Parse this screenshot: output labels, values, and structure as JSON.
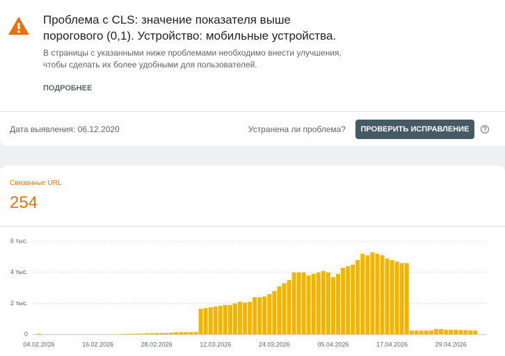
{
  "header": {
    "title_line1": "Проблема с CLS: значение показателя выше",
    "title_line2": "порогового (0,1). Устройство: мобильные устройства.",
    "description_line1": "В страницы с указанными ниже проблемами необходимо внести улучшения,",
    "description_line2": "чтобы сделать их более удобными для пользователей.",
    "more_link": "ПОДРОБНЕЕ",
    "detected": "Дата выявления: 06.12.2020",
    "question": "Устранена ли проблема?",
    "button": "ПРОВЕРИТЬ ИСПРАВЛЕНИЕ"
  },
  "chart_data": {
    "type": "bar",
    "title": "Связанные URL",
    "total": 254,
    "color": "#f4b400",
    "grid": true,
    "categories": [
      "04.02.2026",
      null,
      null,
      null,
      null,
      null,
      null,
      null,
      null,
      null,
      null,
      null,
      "16.02.2026",
      null,
      null,
      null,
      null,
      null,
      null,
      null,
      null,
      null,
      null,
      null,
      "28.02.2026",
      null,
      null,
      null,
      null,
      null,
      null,
      null,
      null,
      null,
      null,
      null,
      "12.03.2026",
      null,
      null,
      null,
      null,
      null,
      null,
      null,
      null,
      null,
      null,
      null,
      "24.03.2026",
      null,
      null,
      null,
      null,
      null,
      null,
      null,
      null,
      null,
      null,
      null,
      "05.04.2026",
      null,
      null,
      null,
      null,
      null,
      null,
      null,
      null,
      null,
      null,
      null,
      "17.04.2026",
      null,
      null,
      null,
      null,
      null,
      null,
      null,
      null,
      null,
      null,
      null,
      "29.04.2026",
      null,
      null,
      null,
      null,
      null
    ],
    "values": [
      50,
      0,
      0,
      0,
      0,
      0,
      0,
      0,
      0,
      0,
      0,
      0,
      0,
      0,
      0,
      0,
      20,
      30,
      40,
      40,
      50,
      60,
      80,
      80,
      90,
      100,
      100,
      110,
      150,
      150,
      160,
      150,
      160,
      1650,
      1700,
      1750,
      1800,
      1850,
      1900,
      1900,
      2000,
      2100,
      2050,
      2100,
      2400,
      2400,
      2450,
      2600,
      2800,
      3100,
      3300,
      3500,
      4000,
      4000,
      4000,
      3800,
      3900,
      4000,
      4100,
      4000,
      3700,
      3900,
      4300,
      4400,
      4500,
      4800,
      5200,
      5100,
      5300,
      5200,
      5100,
      4900,
      4800,
      4700,
      4600,
      4600,
      250,
      250,
      250,
      250,
      250,
      350,
      350,
      300,
      300,
      300,
      280,
      280,
      260,
      250
    ],
    "ylim": [
      0,
      6500
    ],
    "yticks": [
      0,
      {
        "value": 2000,
        "label": "2 тыс."
      },
      {
        "value": 4000,
        "label": "4 тыс."
      },
      {
        "value": 6000,
        "label": "6 тыс."
      }
    ]
  }
}
